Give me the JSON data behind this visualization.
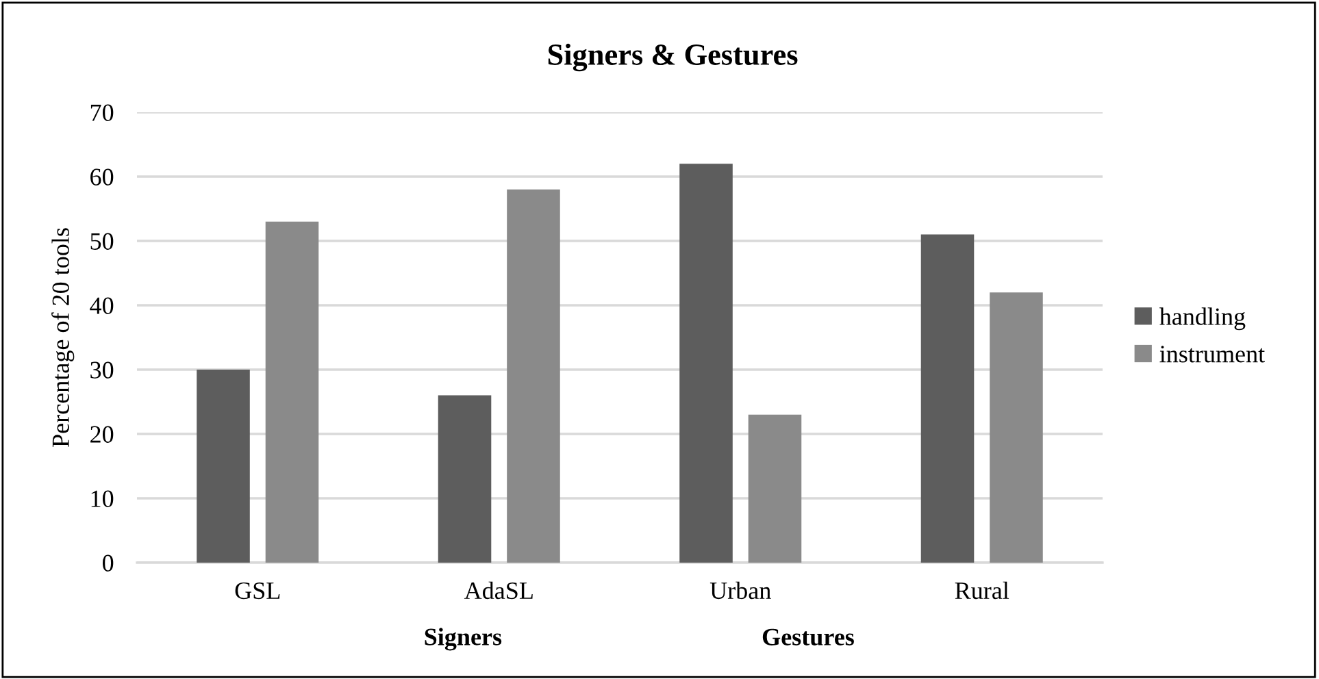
{
  "chart_data": {
    "type": "bar",
    "title": "Signers & Gestures",
    "ylabel": "Percentage of 20 tools",
    "categories": [
      "GSL",
      "AdaSL",
      "Urban",
      "Rural"
    ],
    "series": [
      {
        "name": "handling",
        "color": "#5d5d5d",
        "values": [
          30,
          26,
          62,
          51
        ]
      },
      {
        "name": "instrument",
        "color": "#8a8a8a",
        "values": [
          53,
          58,
          23,
          42
        ]
      }
    ],
    "ylim": [
      0,
      70
    ],
    "yticks": [
      0,
      10,
      20,
      30,
      40,
      50,
      60,
      70
    ],
    "grid": "y",
    "legend": "right",
    "annotations": [
      "Signers",
      "Gestures"
    ]
  }
}
